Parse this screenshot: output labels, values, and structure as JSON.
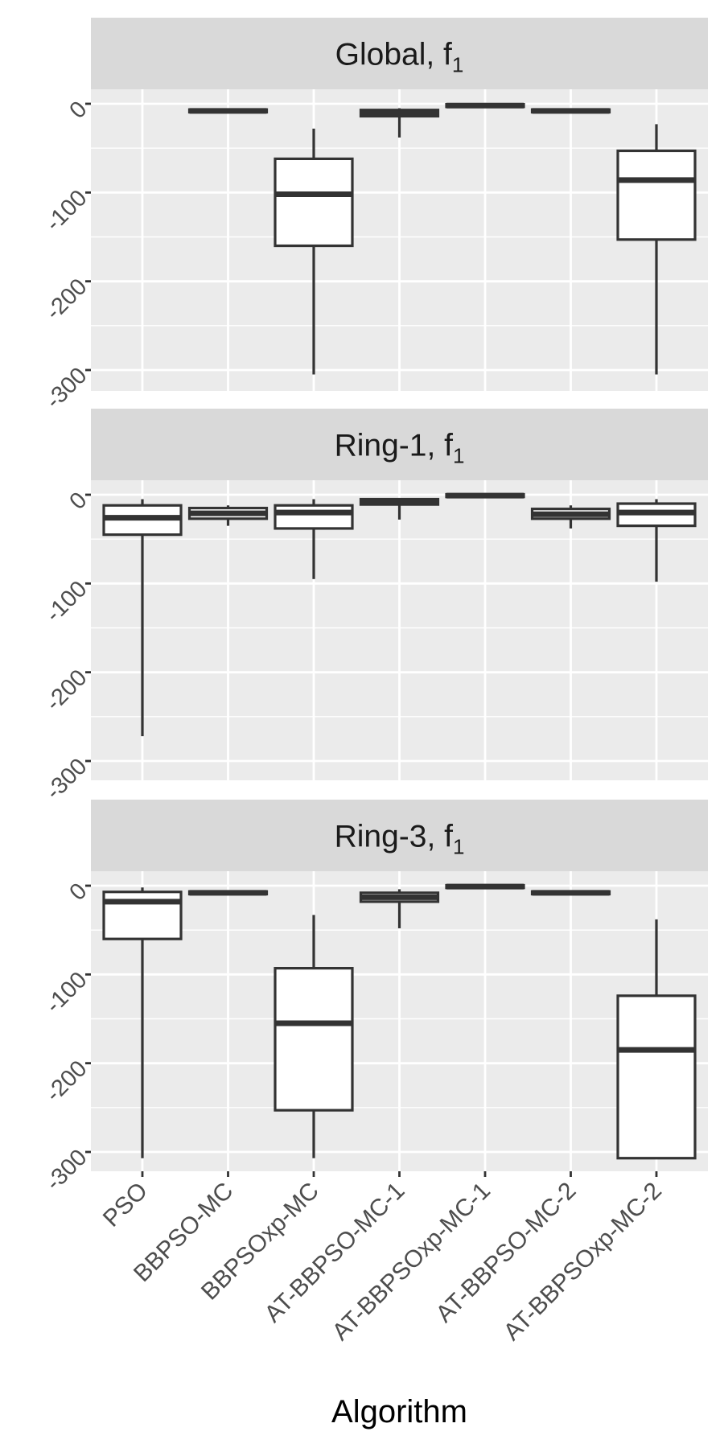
{
  "chart_data": {
    "type": "boxplot",
    "xlabel": "Algorithm",
    "ylabel": "",
    "categories": [
      "PSO",
      "BBPSO-MC",
      "BBPSOxp-MC",
      "AT-BBPSO-MC-1",
      "AT-BBPSOxp-MC-1",
      "AT-BBPSO-MC-2",
      "AT-BBPSOxp-MC-2"
    ],
    "ylim": [
      -310,
      10
    ],
    "yticks": [
      0,
      -100,
      -200,
      -300
    ],
    "grid": true,
    "panels": [
      {
        "title_main": "Global, f",
        "title_sub": "1",
        "boxes": [
          null,
          {
            "lower": -9,
            "q1": -9.5,
            "median": -8,
            "q3": -6.5,
            "upper": -6
          },
          {
            "lower": -305,
            "q1": -160,
            "median": -102,
            "q3": -62,
            "upper": -28
          },
          {
            "lower": -38,
            "q1": -14,
            "median": -11,
            "q3": -7,
            "upper": -5
          },
          {
            "lower": -3,
            "q1": -3.5,
            "median": -2,
            "q3": -0.5,
            "upper": 0
          },
          {
            "lower": -9,
            "q1": -9.5,
            "median": -8,
            "q3": -6.5,
            "upper": -6
          },
          {
            "lower": -305,
            "q1": -153,
            "median": -86,
            "q3": -53,
            "upper": -23
          }
        ]
      },
      {
        "title_main": "Ring-1, f",
        "title_sub": "1",
        "boxes": [
          {
            "lower": -272,
            "q1": -45,
            "median": -26,
            "q3": -12,
            "upper": -5
          },
          {
            "lower": -35,
            "q1": -27,
            "median": -21,
            "q3": -15,
            "upper": -12
          },
          {
            "lower": -95,
            "q1": -38,
            "median": -20,
            "q3": -12,
            "upper": -5
          },
          {
            "lower": -28,
            "q1": -11,
            "median": -8,
            "q3": -5,
            "upper": -4
          },
          {
            "lower": -2,
            "q1": -2.5,
            "median": -1,
            "q3": 0.5,
            "upper": 1
          },
          {
            "lower": -38,
            "q1": -27,
            "median": -22,
            "q3": -16,
            "upper": -12
          },
          {
            "lower": -98,
            "q1": -35,
            "median": -20,
            "q3": -10,
            "upper": -5
          }
        ]
      },
      {
        "title_main": "Ring-3, f",
        "title_sub": "1",
        "boxes": [
          {
            "lower": -307,
            "q1": -60,
            "median": -18,
            "q3": -7,
            "upper": -2
          },
          {
            "lower": -9,
            "q1": -9.5,
            "median": -8,
            "q3": -6.5,
            "upper": -6
          },
          {
            "lower": -307,
            "q1": -253,
            "median": -155,
            "q3": -93,
            "upper": -33
          },
          {
            "lower": -48,
            "q1": -18,
            "median": -13,
            "q3": -8,
            "upper": -4
          },
          {
            "lower": -2,
            "q1": -2.5,
            "median": -1,
            "q3": 0.5,
            "upper": 1
          },
          {
            "lower": -9,
            "q1": -9.5,
            "median": -8,
            "q3": -6.5,
            "upper": -6
          },
          {
            "lower": -307,
            "q1": -307,
            "median": -185,
            "q3": -124,
            "upper": -38
          }
        ]
      }
    ]
  }
}
